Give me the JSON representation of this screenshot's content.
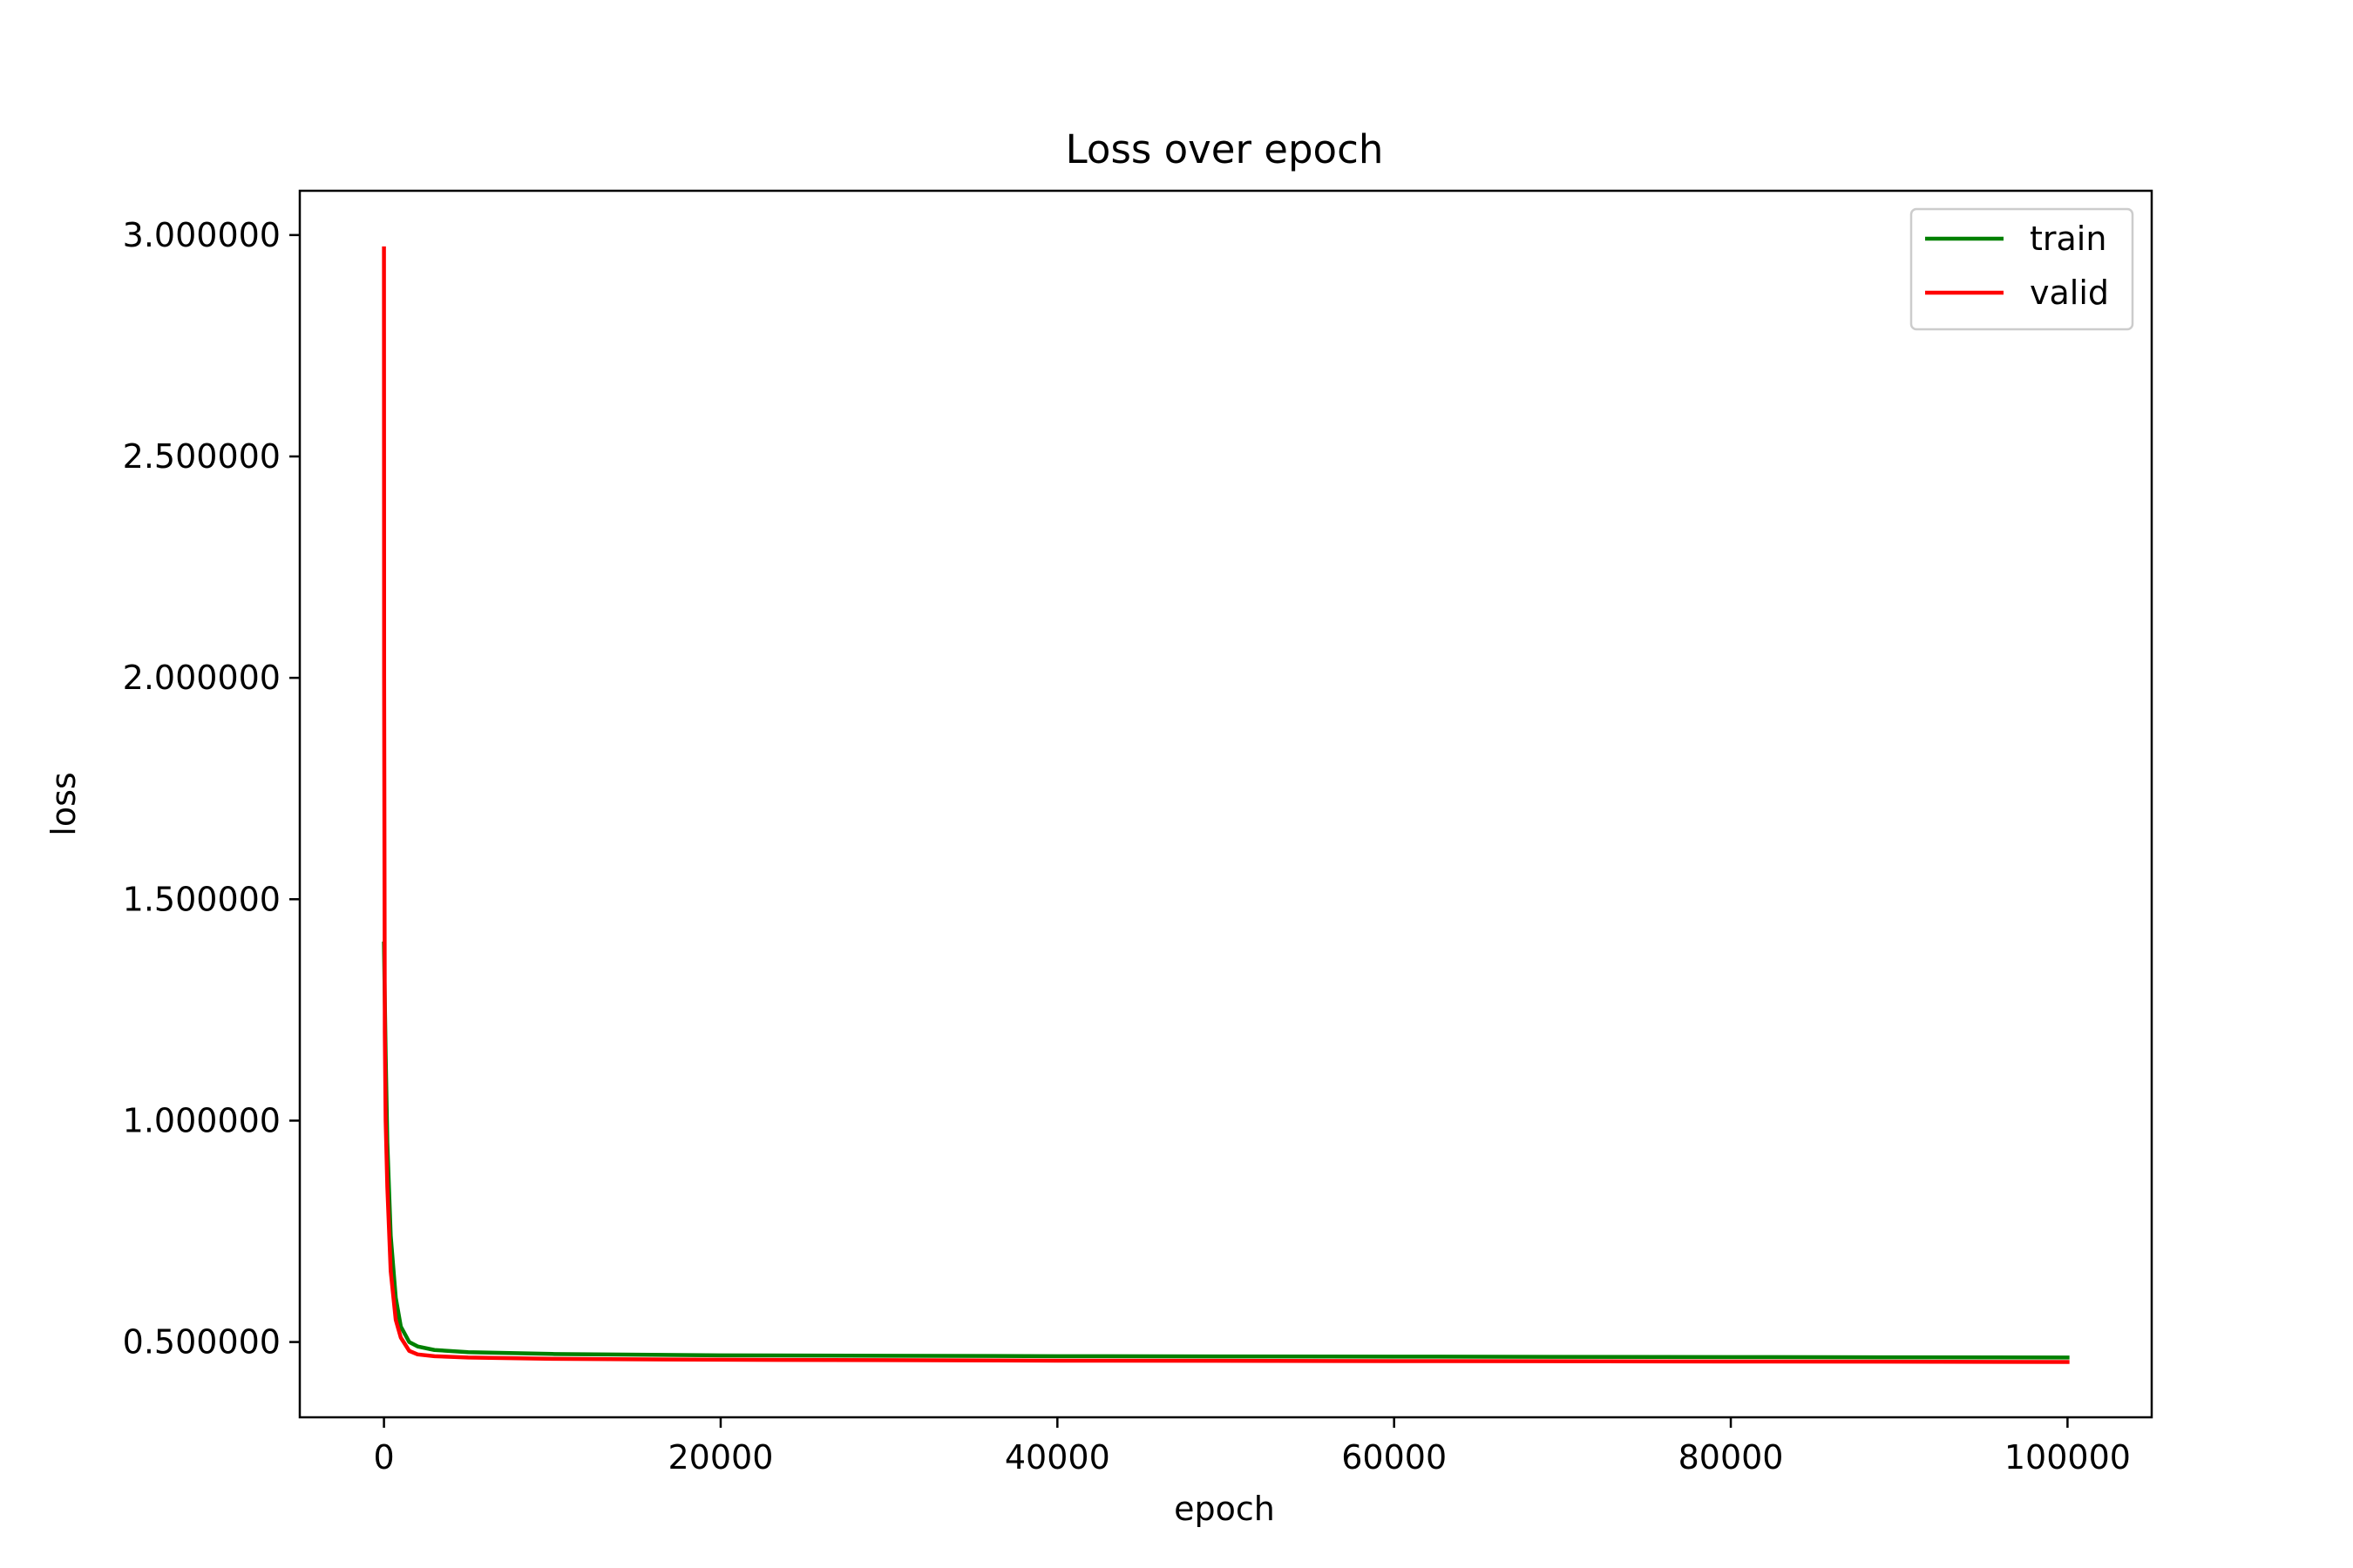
{
  "chart_data": {
    "type": "line",
    "title": "Loss over epoch",
    "xlabel": "epoch",
    "ylabel": "loss",
    "xlim": [
      -5000,
      105000
    ],
    "ylim": [
      0.33,
      3.1
    ],
    "xticks": [
      0,
      20000,
      40000,
      60000,
      80000,
      100000
    ],
    "xtick_labels": [
      "0",
      "20000",
      "40000",
      "60000",
      "80000",
      "100000"
    ],
    "yticks": [
      0.5,
      1.0,
      1.5,
      2.0,
      2.5,
      3.0
    ],
    "ytick_labels": [
      "0.500000",
      "1.000000",
      "1.500000",
      "2.000000",
      "2.500000",
      "3.000000"
    ],
    "grid": false,
    "legend": "top-right",
    "series": [
      {
        "name": "train",
        "color": "#008000",
        "x": [
          0,
          100,
          200,
          400,
          700,
          1000,
          1500,
          2000,
          3000,
          5000,
          10000,
          20000,
          40000,
          60000,
          80000,
          100000
        ],
        "y": [
          1.4,
          1.15,
          0.95,
          0.74,
          0.6,
          0.535,
          0.5,
          0.49,
          0.482,
          0.477,
          0.473,
          0.47,
          0.468,
          0.467,
          0.466,
          0.465
        ]
      },
      {
        "name": "valid",
        "color": "#ff0000",
        "x": [
          0,
          10,
          50,
          100,
          200,
          400,
          700,
          1000,
          1500,
          2000,
          3000,
          5000,
          10000,
          20000,
          40000,
          60000,
          80000,
          100000
        ],
        "y": [
          2.97,
          2.0,
          1.2,
          1.0,
          0.85,
          0.66,
          0.55,
          0.51,
          0.48,
          0.472,
          0.468,
          0.465,
          0.462,
          0.46,
          0.458,
          0.457,
          0.456,
          0.455
        ]
      }
    ]
  }
}
